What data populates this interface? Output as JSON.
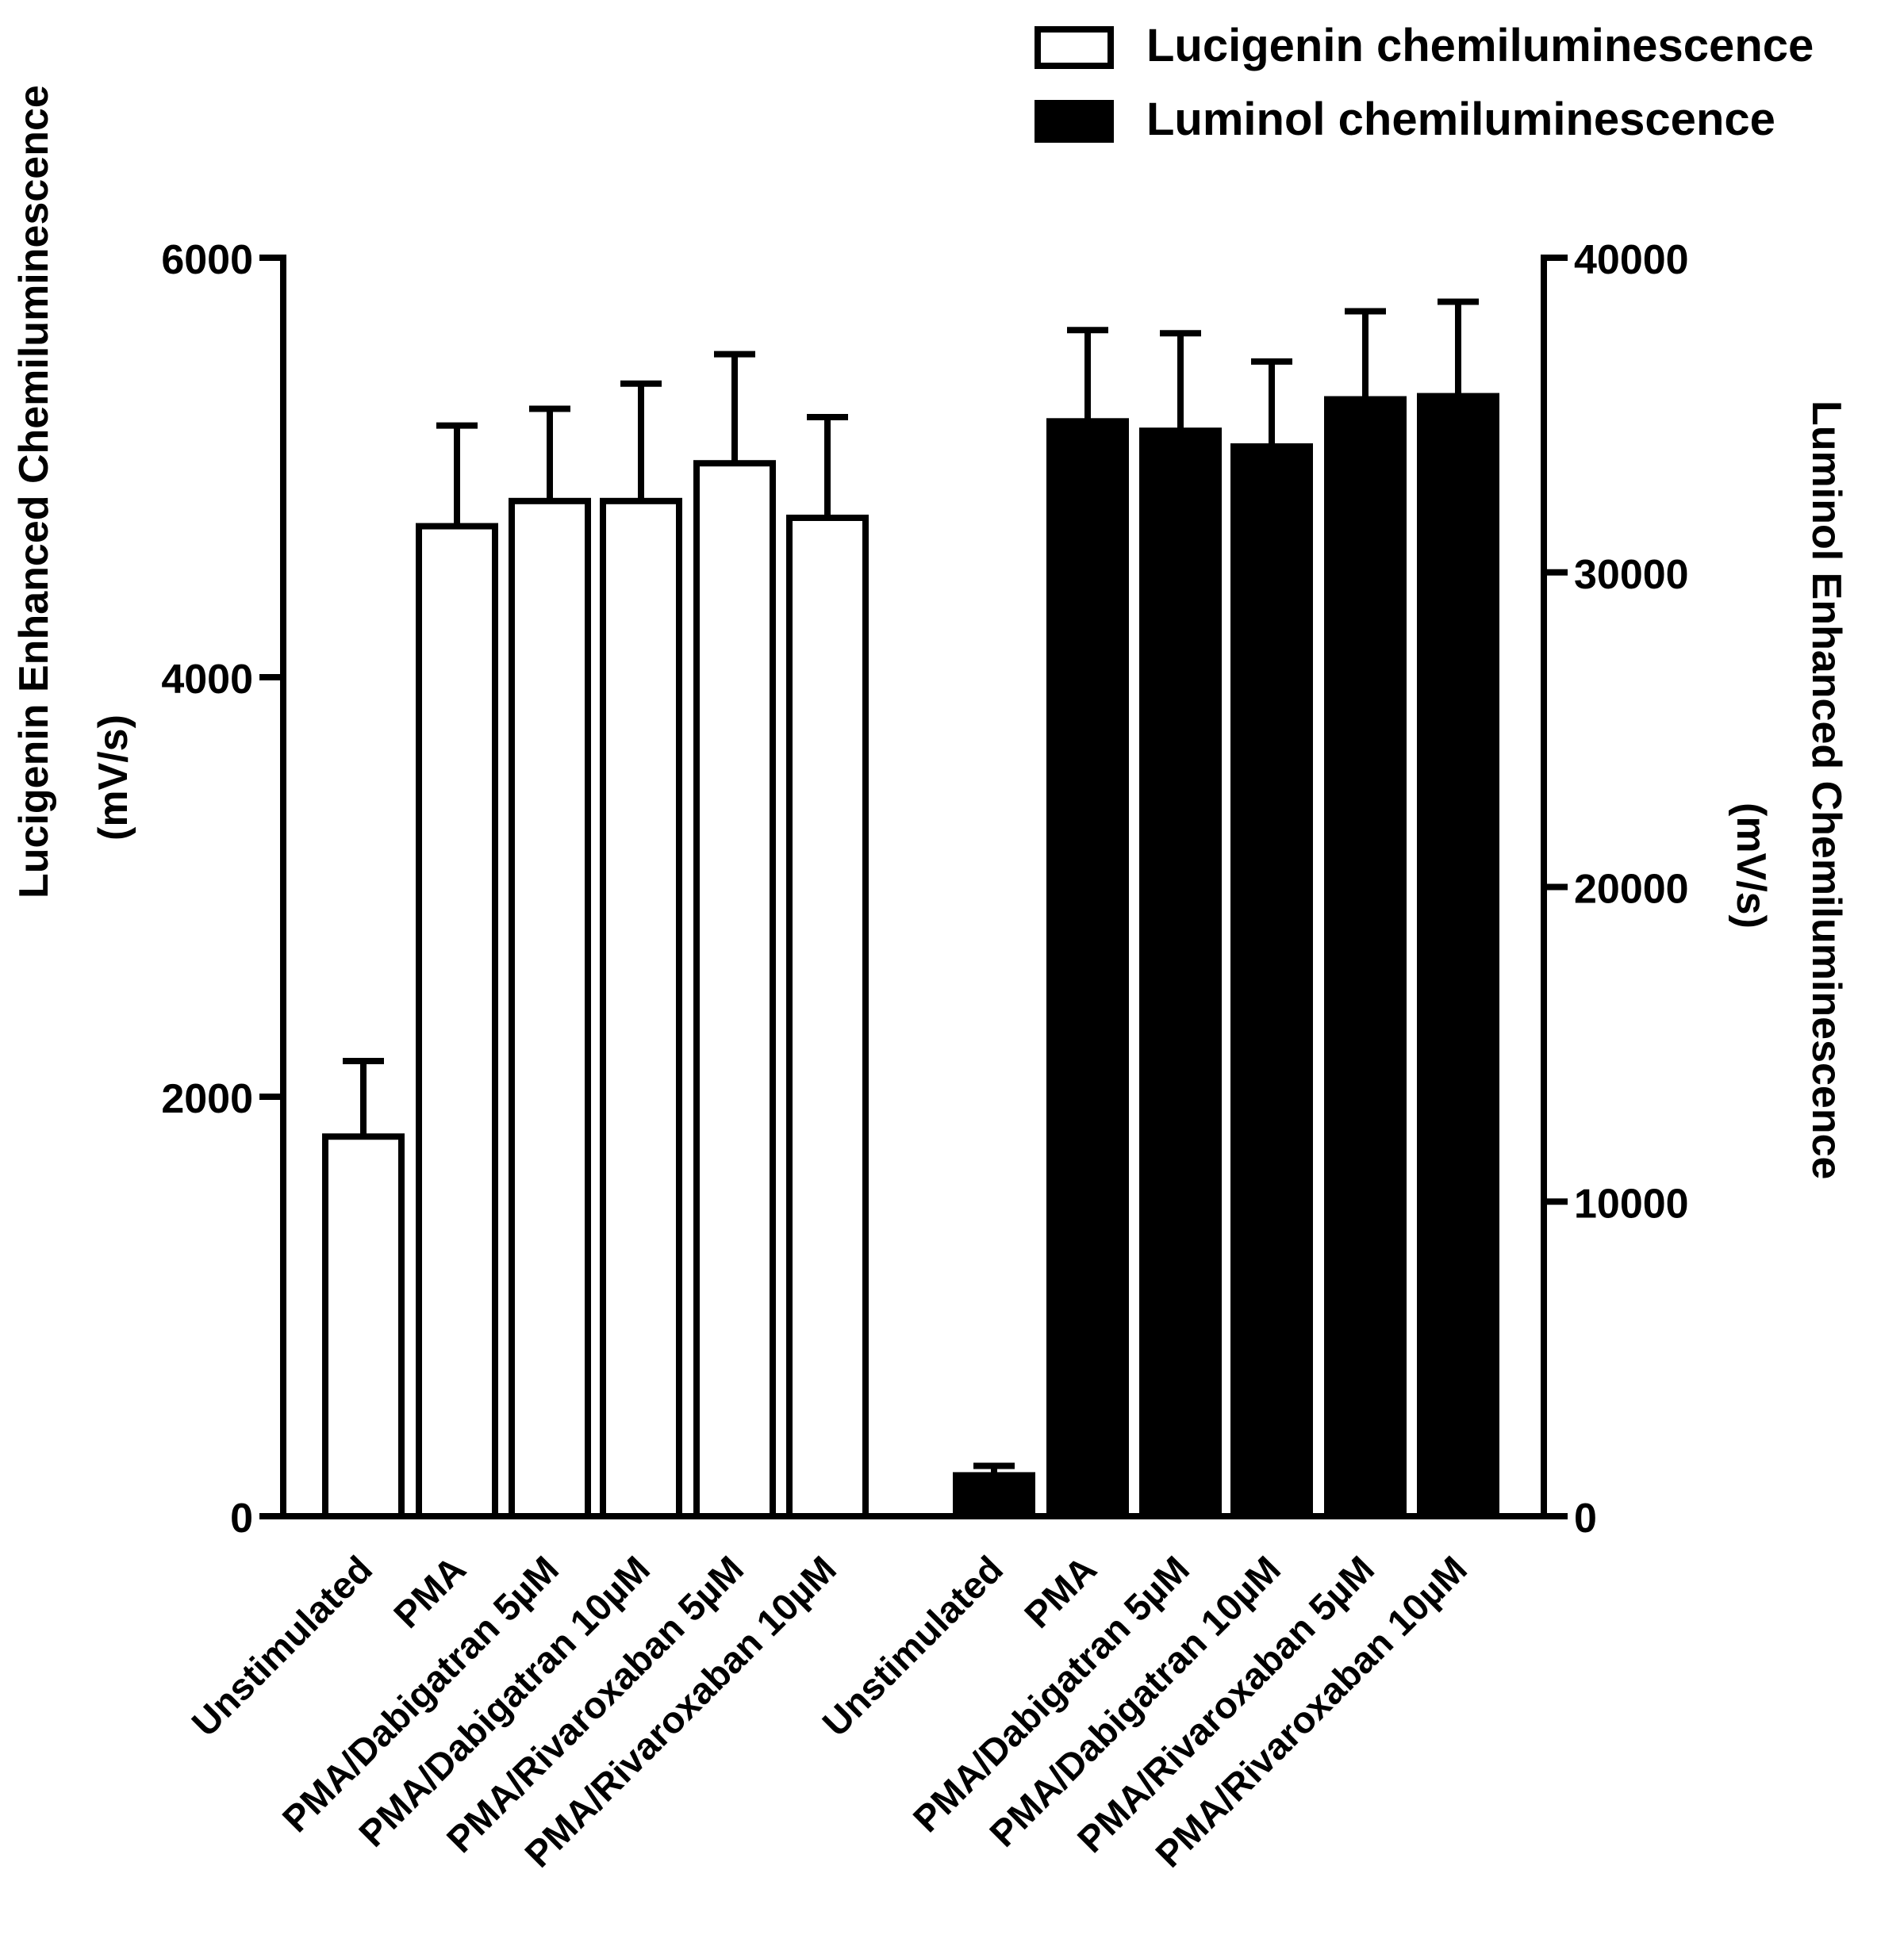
{
  "chart_data": {
    "type": "bar",
    "dual_axis": true,
    "left_axis": {
      "label_line1": "Lucigenin Enhanced Chemiluminescence",
      "label_line2": "(mV/s)",
      "ylim": [
        0,
        6000
      ],
      "ticks": [
        "0",
        "2000",
        "4000",
        "6000"
      ],
      "tick_values": [
        0,
        2000,
        4000,
        6000
      ]
    },
    "right_axis": {
      "label_line1": "Luminol Enhanced Chemiluminescence",
      "label_line2": "(mV/s)",
      "ylim": [
        0,
        40000
      ],
      "ticks": [
        "0",
        "10000",
        "20000",
        "30000",
        "40000"
      ],
      "tick_values": [
        0,
        10000,
        20000,
        30000,
        40000
      ]
    },
    "series": [
      {
        "name": "Lucigenin chemiluminescence",
        "axis": "left",
        "fill": "#ffffff",
        "categories": [
          "Unstimulated",
          "PMA",
          "PMA/Dabigatran 5µM",
          "PMA/Dabigatran 10µM",
          "PMA/Rivaroxaban 5µM",
          "PMA/Rivaroxaban 10µM"
        ],
        "values": [
          1810,
          4720,
          4840,
          4840,
          5020,
          4760
        ],
        "errors": [
          360,
          480,
          440,
          560,
          520,
          480
        ]
      },
      {
        "name": "Luminol chemiluminescence",
        "axis": "right",
        "fill": "#000000",
        "categories": [
          "Unstimulated",
          "PMA",
          "PMA/Dabigatran 5µM",
          "PMA/Dabigatran 10µM",
          "PMA/Rivaroxaban 5µM",
          "PMA/Rivaroxaban 10µM"
        ],
        "values": [
          1300,
          34800,
          34500,
          34000,
          35500,
          35600
        ],
        "errors": [
          300,
          2900,
          3100,
          2700,
          2800,
          3000
        ]
      }
    ],
    "legend": {
      "position": "top-right",
      "entries": [
        "Lucigenin chemiluminescence",
        "Luminol chemiluminescence"
      ]
    }
  }
}
